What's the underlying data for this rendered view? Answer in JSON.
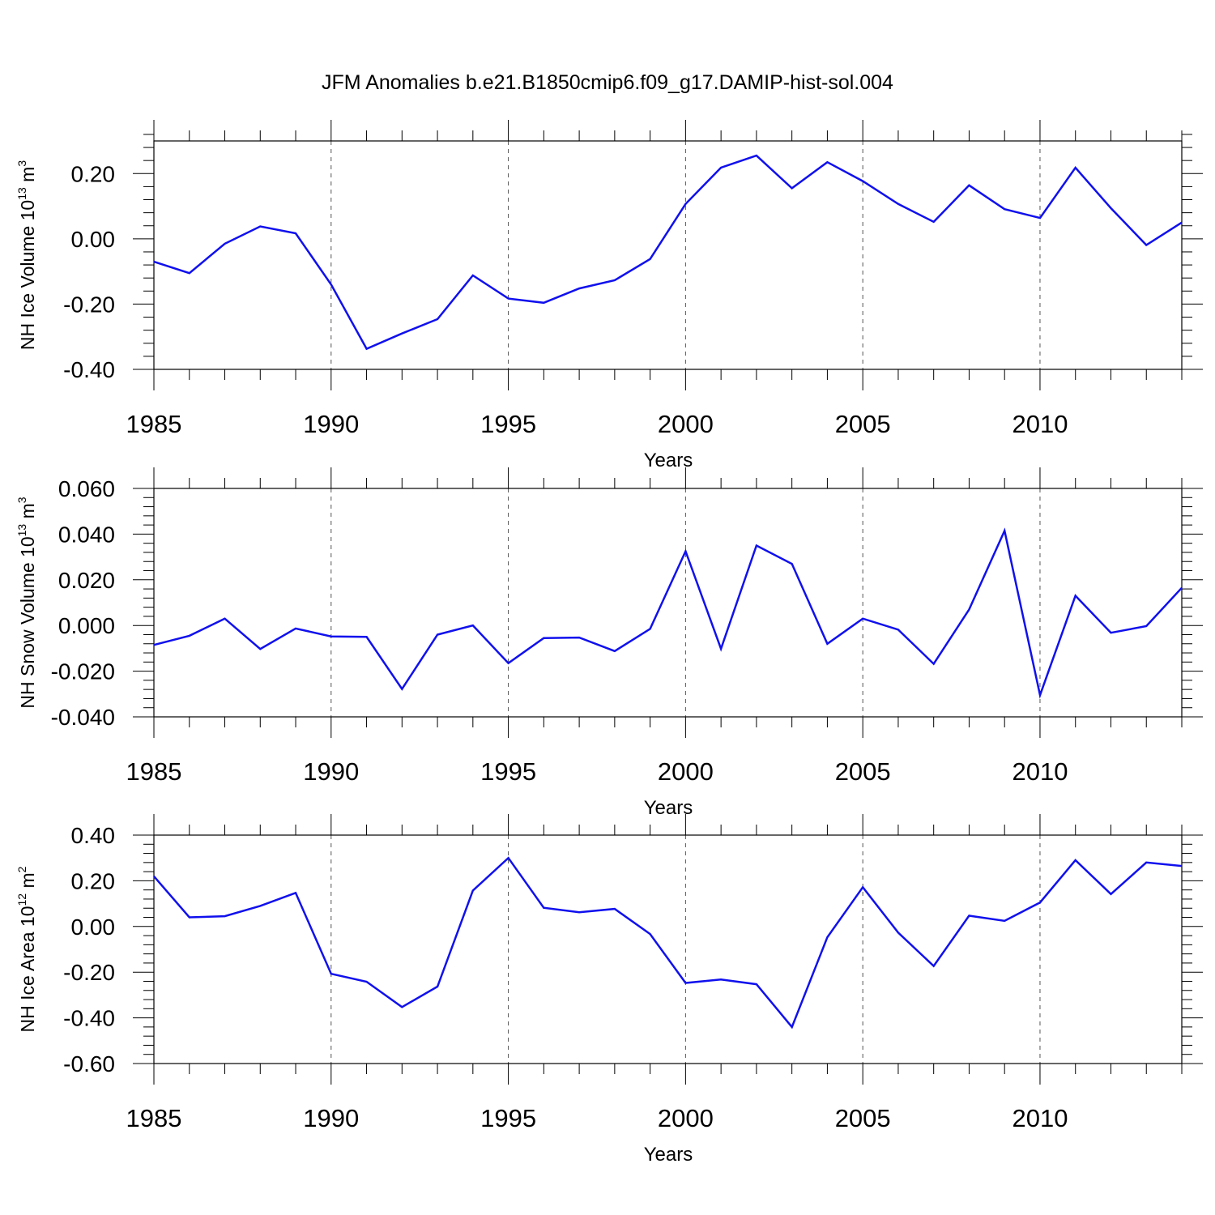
{
  "figure": {
    "title": "JFM Anomalies b.e21.B1850cmip6.f09_g17.DAMIP-hist-sol.004",
    "line_color": "#1010ee"
  },
  "chart_data": [
    {
      "type": "line",
      "title": "",
      "xlabel": "Years",
      "ylabel": {
        "text": "NH Ice Volume 10",
        "exp": "13",
        "unit": " m",
        "unit_exp": "3"
      },
      "xlim": [
        1985,
        2014
      ],
      "ylim": [
        -0.4,
        0.3
      ],
      "x_ticks": [
        1985,
        1990,
        1995,
        2000,
        2005,
        2010
      ],
      "x_tick_labels": [
        "1985",
        "1990",
        "1995",
        "2000",
        "2005",
        "2010"
      ],
      "y_ticks": [
        -0.4,
        -0.2,
        0.0,
        0.2
      ],
      "y_tick_labels": [
        "-0.40",
        "-0.20",
        "0.00",
        "0.20"
      ],
      "grid": "vertical dashed at major x ticks",
      "series": [
        {
          "x": [
            1985,
            1986,
            1987,
            1988,
            1989,
            1990,
            1991,
            1992,
            1993,
            1994,
            1995,
            1996,
            1997,
            1998,
            1999,
            2000,
            2001,
            2002,
            2003,
            2004,
            2005,
            2006,
            2007,
            2008,
            2009,
            2010,
            2011,
            2012,
            2013,
            2014
          ],
          "y": [
            -0.07,
            -0.105,
            -0.015,
            0.038,
            0.017,
            -0.14,
            -0.337,
            -0.29,
            -0.246,
            -0.112,
            -0.183,
            -0.196,
            -0.152,
            -0.127,
            -0.062,
            0.107,
            0.218,
            0.255,
            0.155,
            0.235,
            0.177,
            0.107,
            0.052,
            0.164,
            0.091,
            0.064,
            0.218,
            0.094,
            -0.019,
            0.05
          ]
        }
      ]
    },
    {
      "type": "line",
      "title": "",
      "xlabel": "Years",
      "ylabel": {
        "text": "NH Snow Volume 10",
        "exp": "13",
        "unit": " m",
        "unit_exp": "3"
      },
      "xlim": [
        1985,
        2014
      ],
      "ylim": [
        -0.04,
        0.06
      ],
      "x_ticks": [
        1985,
        1990,
        1995,
        2000,
        2005,
        2010
      ],
      "x_tick_labels": [
        "1985",
        "1990",
        "1995",
        "2000",
        "2005",
        "2010"
      ],
      "y_ticks": [
        -0.04,
        -0.02,
        0.0,
        0.02,
        0.04,
        0.06
      ],
      "y_tick_labels": [
        "-0.040",
        "-0.020",
        "0.000",
        "0.020",
        "0.040",
        "0.060"
      ],
      "grid": "vertical dashed at major x ticks",
      "series": [
        {
          "x": [
            1985,
            1986,
            1987,
            1988,
            1989,
            1990,
            1991,
            1992,
            1993,
            1994,
            1995,
            1996,
            1997,
            1998,
            1999,
            2000,
            2001,
            2002,
            2003,
            2004,
            2005,
            2006,
            2007,
            2008,
            2009,
            2010,
            2011,
            2012,
            2013,
            2014
          ],
          "y": [
            -0.0085,
            -0.0045,
            0.003,
            -0.0103,
            -0.0013,
            -0.0048,
            -0.005,
            -0.0278,
            -0.004,
            0.0,
            -0.0165,
            -0.0055,
            -0.0053,
            -0.0112,
            -0.0015,
            0.0325,
            -0.0102,
            0.035,
            0.027,
            -0.008,
            0.003,
            -0.0018,
            -0.0168,
            0.007,
            0.0415,
            -0.0305,
            0.013,
            -0.0032,
            -0.0003,
            0.0165
          ]
        }
      ]
    },
    {
      "type": "line",
      "title": "",
      "xlabel": "Years",
      "ylabel": {
        "text": "NH Ice Area 10",
        "exp": "12",
        "unit": " m",
        "unit_exp": "2"
      },
      "xlim": [
        1985,
        2014
      ],
      "ylim": [
        -0.6,
        0.4
      ],
      "x_ticks": [
        1985,
        1990,
        1995,
        2000,
        2005,
        2010
      ],
      "x_tick_labels": [
        "1985",
        "1990",
        "1995",
        "2000",
        "2005",
        "2010"
      ],
      "y_ticks": [
        -0.6,
        -0.4,
        -0.2,
        0.0,
        0.2,
        0.4
      ],
      "y_tick_labels": [
        "-0.60",
        "-0.40",
        "-0.20",
        "0.00",
        "0.20",
        "0.40"
      ],
      "grid": "vertical dashed at major x ticks",
      "series": [
        {
          "x": [
            1985,
            1986,
            1987,
            1988,
            1989,
            1990,
            1991,
            1992,
            1993,
            1994,
            1995,
            1996,
            1997,
            1998,
            1999,
            2000,
            2001,
            2002,
            2003,
            2004,
            2005,
            2006,
            2007,
            2008,
            2009,
            2010,
            2011,
            2012,
            2013,
            2014
          ],
          "y": [
            0.22,
            0.04,
            0.045,
            0.09,
            0.147,
            -0.207,
            -0.242,
            -0.353,
            -0.263,
            0.157,
            0.3,
            0.082,
            0.062,
            0.077,
            -0.033,
            -0.247,
            -0.232,
            -0.253,
            -0.44,
            -0.047,
            0.172,
            -0.027,
            -0.173,
            0.047,
            0.025,
            0.105,
            0.29,
            0.142,
            0.28,
            0.265
          ]
        }
      ]
    }
  ]
}
